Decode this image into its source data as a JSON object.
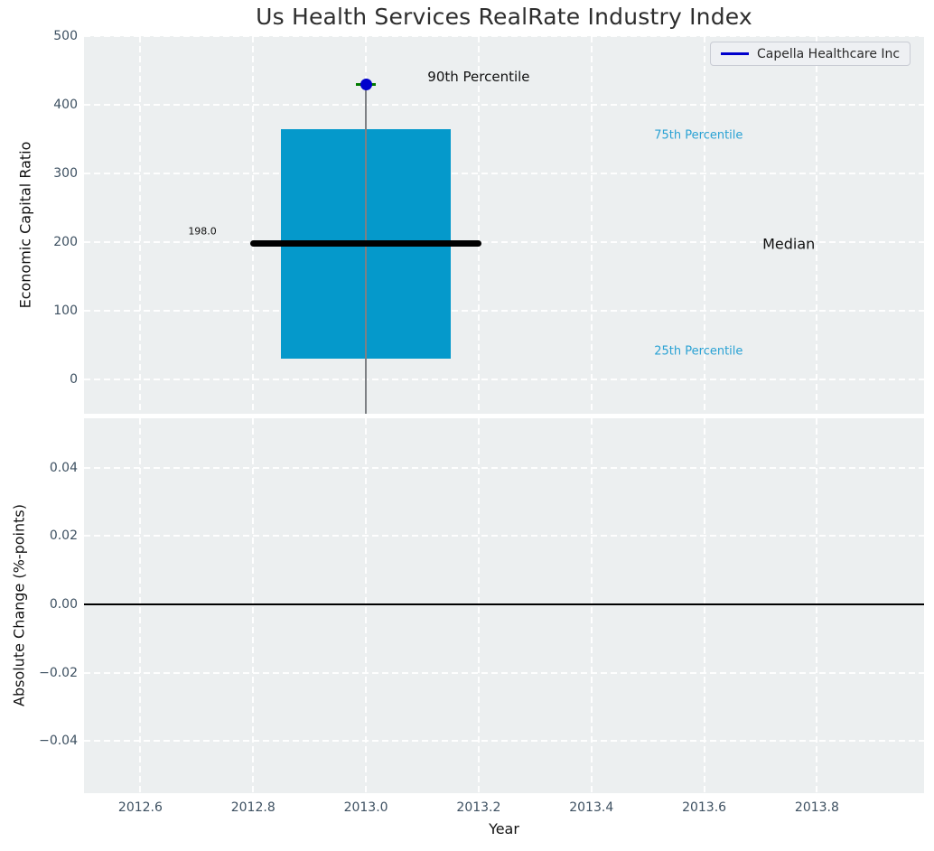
{
  "chart_data": [
    {
      "type": "box",
      "title": "Us Health Services RealRate Industry Index",
      "ylabel": "Economic Capital Ratio",
      "xlim": [
        2012.5,
        2013.99
      ],
      "ylim": [
        -50,
        500
      ],
      "grid": "white-dashed",
      "xticks": {
        "values": [
          2012.6,
          2012.8,
          2013.0,
          2013.2,
          2013.4,
          2013.6,
          2013.8
        ],
        "labels": [
          "2012.6",
          "2012.8",
          "2013.0",
          "2013.2",
          "2013.4",
          "2013.6",
          "2013.8"
        ],
        "show_labels": false
      },
      "yticks": {
        "values": [
          0,
          100,
          200,
          300,
          400,
          500
        ],
        "labels": [
          "0",
          "100",
          "200",
          "300",
          "400",
          "500"
        ]
      },
      "legend": {
        "position": "upper-right",
        "entries": [
          {
            "label": "Capella Healthcare Inc",
            "color": "#0000cc"
          }
        ]
      },
      "box": {
        "x_center": 2013.0,
        "x_range": [
          2012.85,
          2013.15
        ],
        "median_x_range": [
          2012.8,
          2013.2
        ],
        "q1": 30,
        "median": 198.0,
        "q3": 365,
        "p90": 430,
        "whisker_low": -50,
        "whisker_low_clipped": true,
        "box_color": "#0599cb",
        "median_color": "#000000",
        "whisker_color": "#7d8084",
        "cap_color": "#007a00",
        "p90_marker_color": "#0000cc"
      },
      "annotations": [
        {
          "text": "90th Percentile",
          "x": 2013.2,
          "y": 441,
          "color": "#111111",
          "size": 15
        },
        {
          "text": "75th Percentile",
          "x": 2013.59,
          "y": 355,
          "color": "#2aa2d4",
          "size": 13
        },
        {
          "text": "Median",
          "x": 2013.75,
          "y": 197,
          "color": "#111111",
          "size": 16
        },
        {
          "text": "25th Percentile",
          "x": 2013.59,
          "y": 41,
          "color": "#2aa2d4",
          "size": 13
        },
        {
          "text": "198.0",
          "x": 2012.71,
          "y": 216,
          "color": "#111111",
          "size": 11
        }
      ]
    },
    {
      "type": "line",
      "xlabel": "Year",
      "ylabel": "Absolute Change (%-points)",
      "xlim": [
        2012.5,
        2013.99
      ],
      "ylim": [
        -0.0552,
        0.0544
      ],
      "grid": "white-dashed",
      "xticks": {
        "values": [
          2012.6,
          2012.8,
          2013.0,
          2013.2,
          2013.4,
          2013.6,
          2013.8
        ],
        "labels": [
          "2012.6",
          "2012.8",
          "2013.0",
          "2013.2",
          "2013.4",
          "2013.6",
          "2013.8"
        ],
        "show_labels": true
      },
      "yticks": {
        "values": [
          0.04,
          0.02,
          0.0,
          -0.02,
          -0.04
        ],
        "labels": [
          "0.04",
          "0.02",
          "0.00",
          "−0.02",
          "−0.04"
        ]
      },
      "zero_line": {
        "y": 0.0,
        "color": "#000000"
      },
      "series": []
    }
  ],
  "colors": {
    "axes_background": "#eceff0",
    "grid": "#ffffff",
    "tick_labels": "#3d5061",
    "box_fill": "#0599cb",
    "percentile_text": "#2aa2d4",
    "legend_line": "#0000cc"
  }
}
